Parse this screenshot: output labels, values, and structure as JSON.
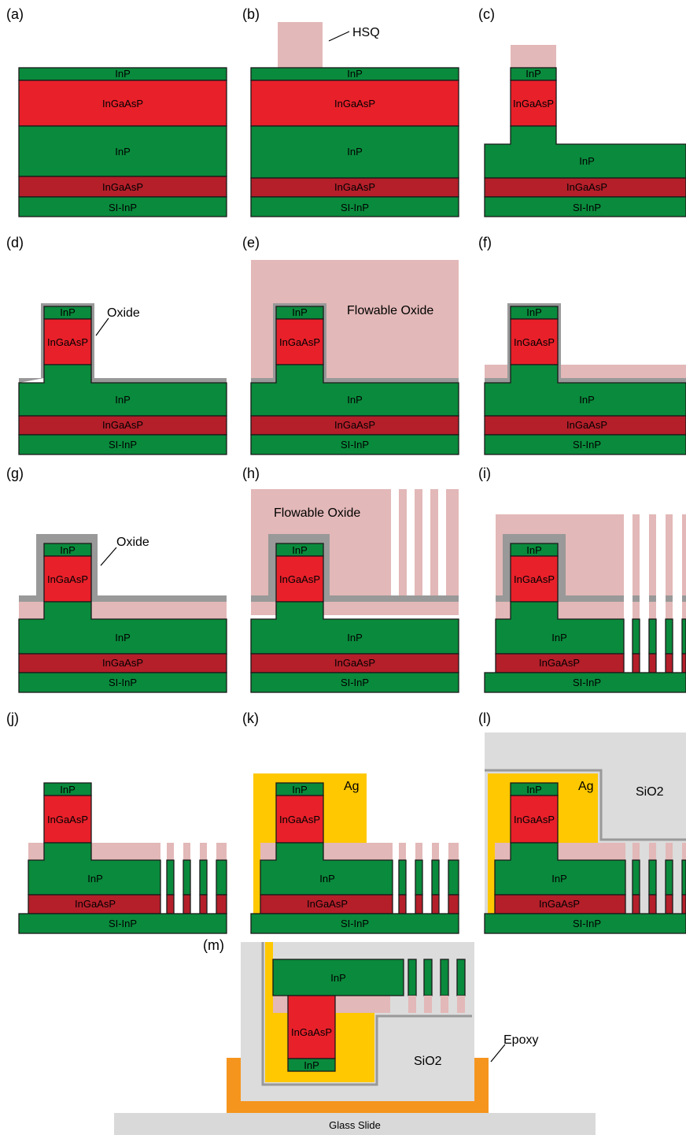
{
  "colors": {
    "inp": "#0a8a3c",
    "ingaasp_core": "#e8202a",
    "ingaasp_bottom": "#b41f2a",
    "hsq": "#e3b8b8",
    "oxide": "#999999",
    "silver": "#ffc800",
    "sio2": "#dcdcdc",
    "epoxy": "#f5951e",
    "glass": "#d9d9d9",
    "outline": "#1a1a1a"
  },
  "panels": {
    "a": "(a)",
    "b": "(b)",
    "c": "(c)",
    "d": "(d)",
    "e": "(e)",
    "f": "(f)",
    "g": "(g)",
    "h": "(h)",
    "i": "(i)",
    "j": "(j)",
    "k": "(k)",
    "l": "(l)",
    "m": "(m)"
  },
  "layers": {
    "inp": "InP",
    "ingaasp": "InGaAsP",
    "si_inp": "SI-InP"
  },
  "callouts": {
    "hsq": "HSQ",
    "oxide": "Oxide",
    "flowable_oxide": "Flowable Oxide",
    "ag": "Ag",
    "sio2": "SiO2",
    "epoxy": "Epoxy",
    "glass_slide": "Glass Slide"
  }
}
